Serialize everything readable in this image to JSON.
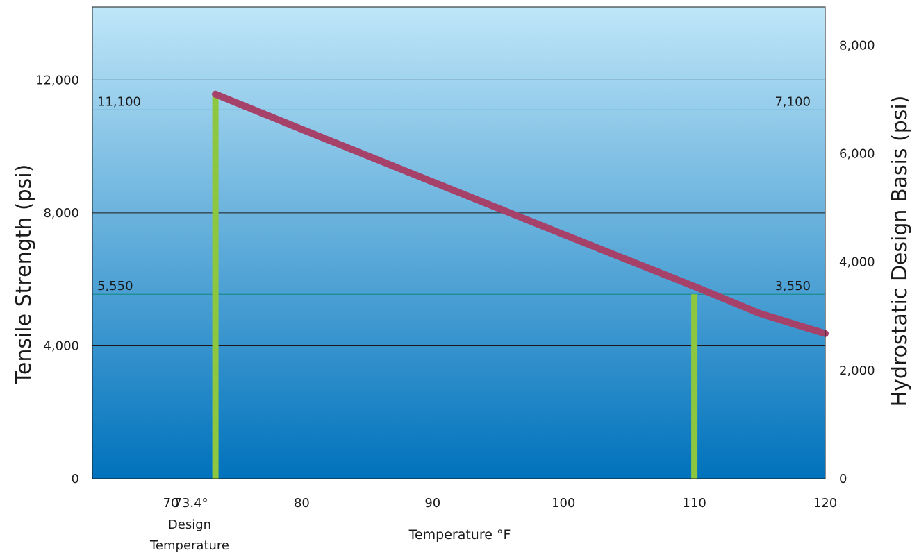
{
  "chart_data": {
    "type": "line",
    "xlabel": "Temperature °F",
    "ylabel_left": "Tensile Strength (psi)",
    "ylabel_right": "Hydrostatic Design Basis (psi)",
    "xlim": [
      64,
      120
    ],
    "x_ticks": [
      "70",
      "80",
      "90",
      "100",
      "110",
      "120"
    ],
    "x_tick_values": [
      70,
      80,
      90,
      100,
      110,
      120
    ],
    "ylim_left": [
      0,
      14200
    ],
    "ylim_right": [
      0,
      8710
    ],
    "y_left_ticks": [
      "0",
      "4,000",
      "8,000",
      "12,000"
    ],
    "y_left_tick_values": [
      0,
      4000,
      8000,
      12000
    ],
    "y_right_ticks": [
      "0",
      "2,000",
      "4,000",
      "6,000",
      "8,000"
    ],
    "y_right_tick_values": [
      0,
      2000,
      4000,
      6000,
      8000
    ],
    "grid": true,
    "design_temperature": {
      "x": 73.4,
      "label": "73.4°",
      "caption_line1": "Design",
      "caption_line2": "Temperature",
      "color": "#8dc63f"
    },
    "marker_110": {
      "x": 110,
      "tensile_top": 5550,
      "color": "#8dc63f"
    },
    "reference_lines": [
      {
        "left_label": "11,100",
        "right_label": "7,100",
        "value_left": 11100,
        "color": "#1a8c8c"
      },
      {
        "left_label": "5,550",
        "right_label": "3,550",
        "value_left": 5550,
        "color": "#1a8c8c"
      }
    ],
    "series": [
      {
        "axis": "right",
        "color": "#a6426a",
        "x": [
          73.4,
          80,
          90,
          100,
          110,
          115,
          120
        ],
        "y": [
          7100,
          6450,
          5480,
          4510,
          3550,
          3050,
          2680
        ]
      }
    ],
    "background": {
      "top": "#bfe6f8",
      "bottom": "#0072bc"
    }
  }
}
